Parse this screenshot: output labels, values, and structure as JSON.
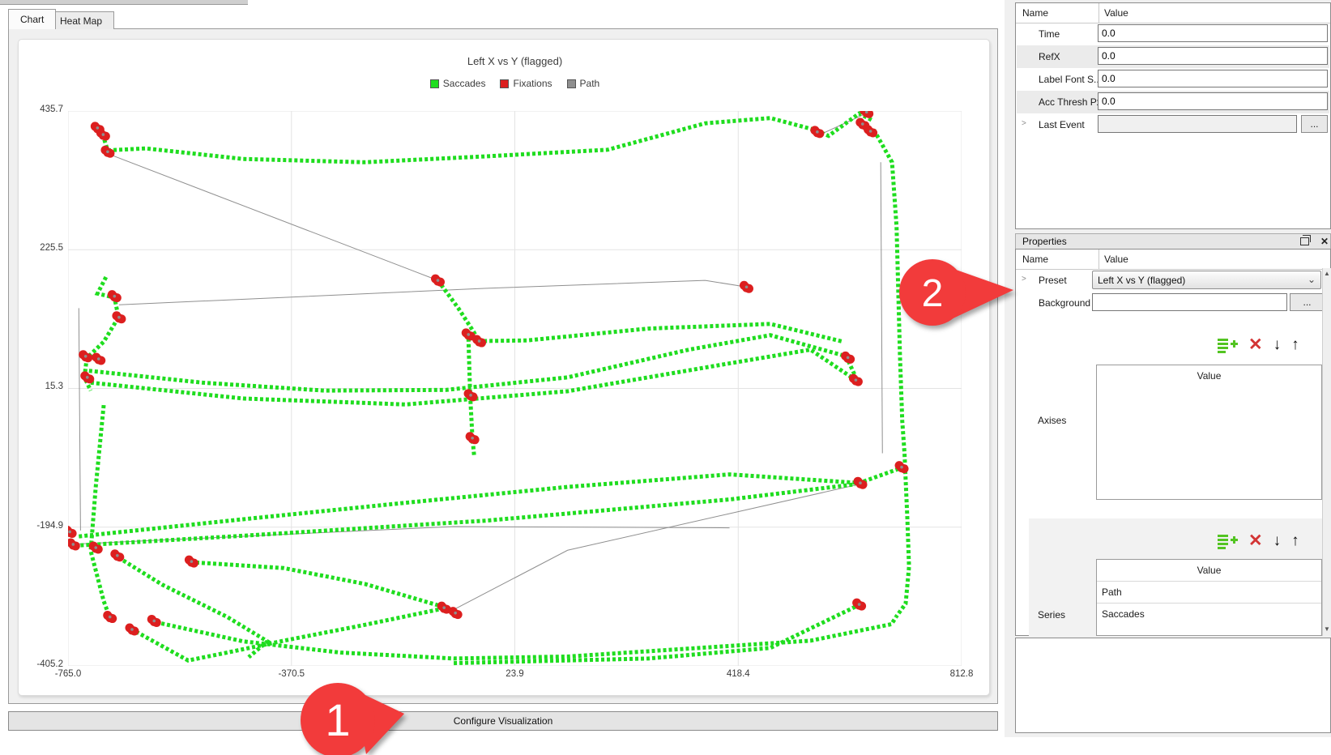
{
  "tabs": [
    {
      "label": "Chart",
      "active": true
    },
    {
      "label": "Heat Map",
      "active": false
    }
  ],
  "chart": {
    "title": "Left X vs Y (flagged)",
    "legend": [
      {
        "label": "Saccades",
        "color": "#1fdd1f"
      },
      {
        "label": "Fixations",
        "color": "#dc1f1f"
      },
      {
        "label": "Path",
        "color": "#8f8f8f"
      }
    ]
  },
  "chart_data": {
    "type": "scatter",
    "title": "Left X vs Y (flagged)",
    "xlabel": "",
    "ylabel": "",
    "xlim": [
      -765.0,
      812.8
    ],
    "ylim": [
      -405.2,
      435.7
    ],
    "x_ticks": [
      -765.0,
      -370.5,
      23.9,
      418.4,
      812.8
    ],
    "y_ticks": [
      435.7,
      225.5,
      15.3,
      -194.9,
      -405.2
    ],
    "x_tick_labels": [
      "-765.0",
      "-370.5",
      "23.9",
      "418.4",
      "812.8"
    ],
    "y_tick_labels": [
      "435.7",
      "225.5",
      "15.3",
      "-194.9",
      "-405.2"
    ],
    "grid": true,
    "legend_position": "top",
    "series": [
      {
        "name": "Path",
        "type": "line",
        "color": "#8f8f8f",
        "polylines": [
          [
            [
              -695,
              371
            ],
            [
              -112,
              179
            ]
          ],
          [
            [
              -675,
              142
            ],
            [
              -26,
              167
            ],
            [
              360,
              179
            ],
            [
              433,
              169
            ]
          ],
          [
            [
              -746,
              137
            ],
            [
              -743,
              -200
            ]
          ],
          [
            [
              -764,
              -221
            ],
            [
              -84,
              -194
            ],
            [
              403,
              -196
            ]
          ],
          [
            [
              632,
              -130
            ],
            [
              117,
              -230
            ],
            [
              -84,
              -320
            ]
          ],
          [
            [
              558,
              398
            ],
            [
              639,
              430
            ]
          ],
          [
            [
              670,
              358
            ],
            [
              673,
              -83
            ]
          ]
        ]
      },
      {
        "name": "Saccades",
        "type": "dotted-path",
        "color": "#1fdd1f",
        "polylines": [
          [
            [
              -711,
              407
            ],
            [
              -702,
              395
            ],
            [
              -695,
              376
            ],
            [
              -628,
              379
            ],
            [
              -456,
              363
            ],
            [
              -241,
              358
            ],
            [
              -26,
              367
            ],
            [
              188,
              377
            ],
            [
              360,
              417
            ],
            [
              475,
              425
            ],
            [
              554,
              407
            ],
            [
              578,
              398
            ],
            [
              632,
              432
            ],
            [
              654,
              422
            ]
          ],
          [
            [
              658,
              407
            ],
            [
              690,
              358
            ],
            [
              698,
              260
            ],
            [
              701,
              162
            ],
            [
              704,
              64
            ],
            [
              708,
              -34
            ],
            [
              712,
              -83
            ],
            [
              717,
              -182
            ],
            [
              720,
              -255
            ],
            [
              714,
              -311
            ],
            [
              697,
              -331
            ]
          ],
          [
            [
              -698,
              184
            ],
            [
              -713,
              159
            ],
            [
              -683,
              153
            ],
            [
              -676,
              123
            ],
            [
              -702,
              86
            ],
            [
              -732,
              61
            ],
            [
              -736,
              32
            ],
            [
              -725,
              12
            ]
          ],
          [
            [
              -728,
              42
            ],
            [
              -527,
              24
            ],
            [
              -313,
              12
            ],
            [
              -98,
              13
            ],
            [
              117,
              32
            ],
            [
              331,
              74
            ],
            [
              475,
              96
            ],
            [
              609,
              64
            ],
            [
              626,
              32
            ]
          ],
          [
            [
              -725,
              24
            ],
            [
              -456,
              0
            ],
            [
              -169,
              -9
            ],
            [
              117,
              11
            ],
            [
              374,
              49
            ],
            [
              546,
              74
            ],
            [
              624,
              29
            ]
          ],
          [
            [
              -41,
              87
            ],
            [
              45,
              88
            ],
            [
              260,
              106
            ],
            [
              475,
              113
            ],
            [
              604,
              86
            ]
          ],
          [
            [
              -112,
              179
            ],
            [
              -76,
              137
            ],
            [
              -48,
              100
            ],
            [
              -41,
              88
            ]
          ],
          [
            [
              -58,
              91
            ],
            [
              -55,
              6
            ],
            [
              -51,
              -59
            ],
            [
              -48,
              -86
            ]
          ],
          [
            [
              -746,
              -209
            ],
            [
              -456,
              -183
            ],
            [
              -169,
              -158
            ],
            [
              117,
              -134
            ],
            [
              403,
              -115
            ],
            [
              632,
              -128
            ],
            [
              707,
              -105
            ]
          ],
          [
            [
              -753,
              -223
            ],
            [
              -456,
              -208
            ],
            [
              -26,
              -185
            ],
            [
              403,
              -153
            ],
            [
              625,
              -130
            ]
          ],
          [
            [
              -702,
              -10
            ],
            [
              -716,
              -133
            ],
            [
              -725,
              -231
            ],
            [
              -702,
              -307
            ],
            [
              -691,
              -333
            ]
          ],
          [
            [
              -676,
              -241
            ],
            [
              -599,
              -282
            ],
            [
              -484,
              -331
            ],
            [
              -413,
              -368
            ],
            [
              -446,
              -392
            ]
          ],
          [
            [
              -610,
              -339
            ],
            [
              -456,
              -368
            ],
            [
              -284,
              -385
            ],
            [
              -84,
              -394
            ],
            [
              117,
              -391
            ],
            [
              331,
              -379
            ],
            [
              546,
              -367
            ],
            [
              689,
              -342
            ],
            [
              697,
              -331
            ]
          ],
          [
            [
              -84,
              -401
            ],
            [
              260,
              -394
            ],
            [
              475,
              -378
            ],
            [
              629,
              -314
            ]
          ],
          [
            [
              -101,
              -318
            ],
            [
              -241,
              -343
            ],
            [
              -384,
              -367
            ],
            [
              -484,
              -385
            ],
            [
              -553,
              -397
            ],
            [
              -652,
              -350
            ]
          ],
          [
            [
              -549,
              -248
            ],
            [
              -384,
              -257
            ],
            [
              -241,
              -281
            ],
            [
              -101,
              -316
            ]
          ]
        ]
      },
      {
        "name": "Fixations",
        "type": "points",
        "color": "#dc1f1f",
        "points": [
          [
            -713,
            410
          ],
          [
            -703,
            400
          ],
          [
            -695,
            374
          ],
          [
            558,
            404
          ],
          [
            645,
            434
          ],
          [
            638,
            416
          ],
          [
            652,
            405
          ],
          [
            -112,
            179
          ],
          [
            -58,
            97
          ],
          [
            -39,
            87
          ],
          [
            433,
            169
          ],
          [
            -683,
            155
          ],
          [
            -675,
            123
          ],
          [
            -734,
            64
          ],
          [
            -711,
            60
          ],
          [
            -731,
            32
          ],
          [
            612,
            62
          ],
          [
            626,
            28
          ],
          [
            -54,
            5
          ],
          [
            -51,
            -60
          ],
          [
            707,
            -104
          ],
          [
            634,
            -128
          ],
          [
            -762,
            -202
          ],
          [
            -756,
            -221
          ],
          [
            -716,
            -226
          ],
          [
            -678,
            -238
          ],
          [
            -547,
            -247
          ],
          [
            -101,
            -317
          ],
          [
            -81,
            -325
          ],
          [
            632,
            -312
          ],
          [
            -691,
            -331
          ],
          [
            -652,
            -350
          ],
          [
            -613,
            -337
          ]
        ]
      }
    ]
  },
  "configure_button": {
    "label": "Configure Visualization"
  },
  "annotations": {
    "color": "#f23b3b",
    "items": [
      {
        "number": "1"
      },
      {
        "number": "2"
      }
    ]
  },
  "top_properties": {
    "columns": {
      "name": "Name",
      "value": "Value"
    },
    "rows": [
      {
        "name": "Time",
        "value": "0.0"
      },
      {
        "name": "RefX",
        "value": "0.0"
      },
      {
        "name": "Label Font S...",
        "value": "0.0"
      },
      {
        "name": "Acc Thresh Px",
        "value": "0.0"
      },
      {
        "name": "Last Event",
        "value": "",
        "button": "...",
        "expandable": ">"
      }
    ]
  },
  "properties_panel": {
    "title": "Properties",
    "columns": {
      "name": "Name",
      "value": "Value"
    },
    "preset": {
      "name": "Preset",
      "value": "Left X vs Y (flagged)",
      "expandable": ">"
    },
    "background": {
      "name": "Background",
      "value": "",
      "button": "..."
    },
    "axises": {
      "name": "Axises",
      "table_header": "Value",
      "rows": []
    },
    "series": {
      "name": "Series",
      "table_header": "Value",
      "rows": [
        "Path",
        "Saccades"
      ]
    }
  }
}
